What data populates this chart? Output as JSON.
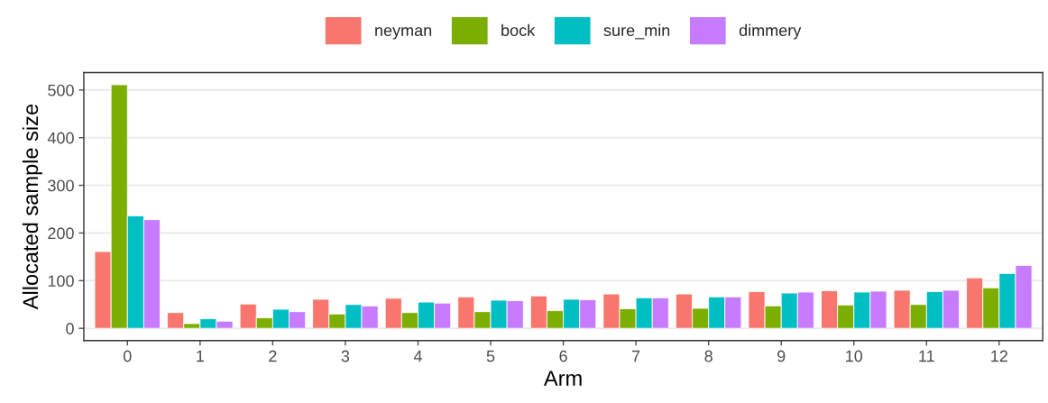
{
  "chart_data": {
    "type": "bar",
    "xlabel": "Arm",
    "ylabel": "Allocated sample size",
    "categories": [
      "0",
      "1",
      "2",
      "3",
      "4",
      "5",
      "6",
      "7",
      "8",
      "9",
      "10",
      "11",
      "12"
    ],
    "series": [
      {
        "name": "neyman",
        "color": "#f8766d",
        "values": [
          161,
          33,
          51,
          61,
          63,
          66,
          68,
          72,
          72,
          77,
          79,
          80,
          106
        ]
      },
      {
        "name": "bock",
        "color": "#7cae00",
        "values": [
          511,
          10,
          22,
          30,
          33,
          35,
          37,
          41,
          42,
          47,
          49,
          50,
          85
        ]
      },
      {
        "name": "sure_min",
        "color": "#00bfc4",
        "values": [
          236,
          20,
          40,
          50,
          55,
          59,
          61,
          64,
          66,
          74,
          76,
          77,
          115
        ]
      },
      {
        "name": "dimmery",
        "color": "#c77cff",
        "values": [
          228,
          15,
          35,
          47,
          53,
          58,
          60,
          64,
          66,
          76,
          78,
          80,
          132
        ]
      }
    ],
    "ylim": [
      -25.6,
      536.6
    ],
    "yticks": [
      0,
      100,
      200,
      300,
      400,
      500
    ],
    "grid": "y",
    "legend": "top"
  }
}
